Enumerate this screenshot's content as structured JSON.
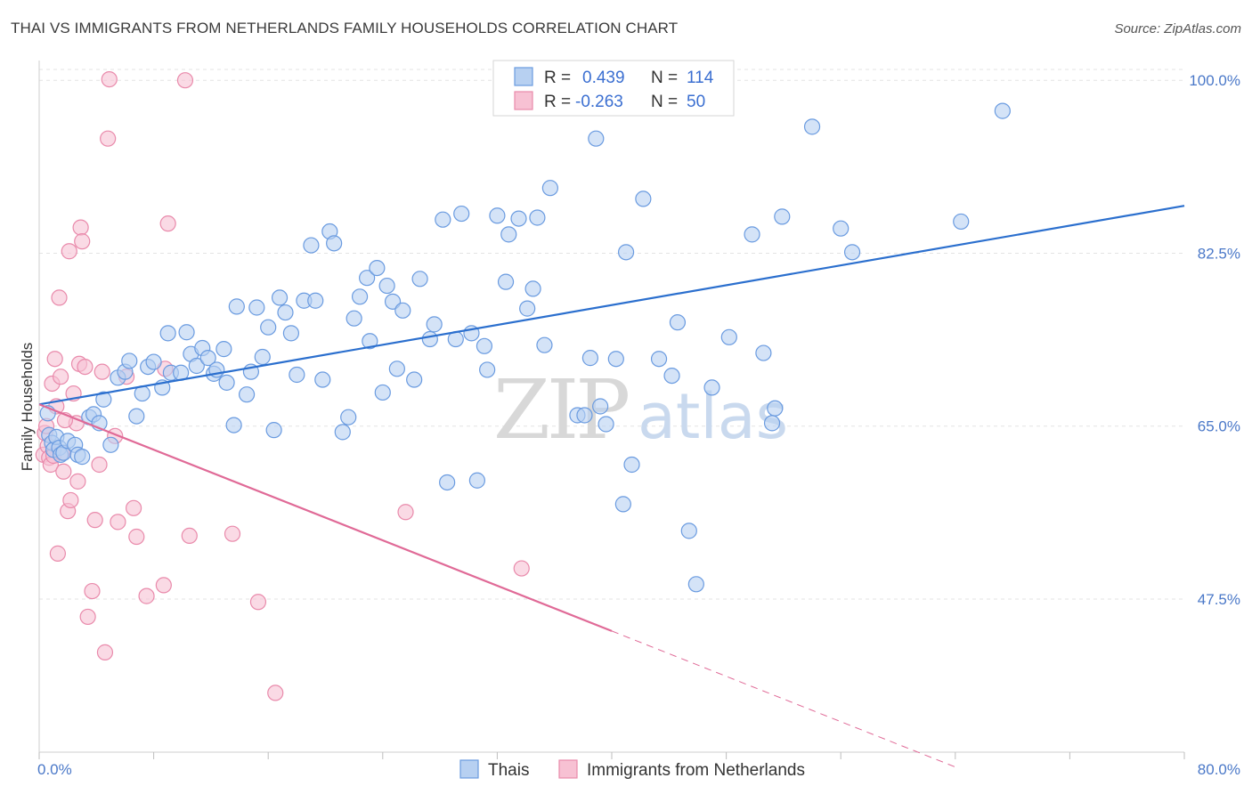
{
  "title": "THAI VS IMMIGRANTS FROM NETHERLANDS FAMILY HOUSEHOLDS CORRELATION CHART",
  "source": "Source: ZipAtlas.com",
  "watermark": {
    "zip": "ZIP",
    "atlas": "atlas"
  },
  "colors": {
    "thai_fill": "#b7d0f1",
    "thai_stroke": "#6a9be0",
    "thai_line": "#2b6fce",
    "neth_fill": "#f7c1d3",
    "neth_stroke": "#e98aab",
    "neth_line": "#e06a97",
    "grid": "#e3e3e3",
    "tick_text": "#4a78c8"
  },
  "legend": {
    "rows": [
      {
        "r_label": "R =",
        "r_value": "0.439",
        "n_label": "N =",
        "n_value": "114"
      },
      {
        "r_label": "R =",
        "r_value": "-0.263",
        "n_label": "N =",
        "n_value": "50"
      }
    ]
  },
  "chart_data": {
    "type": "scatter",
    "ylabel": "Family Households",
    "xlabel": "",
    "xlim": [
      0,
      80
    ],
    "ylim": [
      32,
      102
    ],
    "x_tick_labels": [
      "0.0%",
      "80.0%"
    ],
    "y_ticks": [
      47.5,
      65.0,
      82.5,
      100.0
    ],
    "y_tick_labels": [
      "47.5%",
      "65.0%",
      "82.5%",
      "100.0%"
    ],
    "grid": true,
    "series": [
      {
        "name": "Thais",
        "trend": {
          "x": [
            0,
            80
          ],
          "y": [
            67.2,
            87.3
          ],
          "dashed_from": null
        },
        "points": [
          [
            0.6,
            66.3
          ],
          [
            0.7,
            64.1
          ],
          [
            0.9,
            63.3
          ],
          [
            1.0,
            62.6
          ],
          [
            1.2,
            63.9
          ],
          [
            1.4,
            62.8
          ],
          [
            1.5,
            62.1
          ],
          [
            1.7,
            62.3
          ],
          [
            2.0,
            63.5
          ],
          [
            2.5,
            63.1
          ],
          [
            2.7,
            62.1
          ],
          [
            3.0,
            61.9
          ],
          [
            3.5,
            65.9
          ],
          [
            3.8,
            66.2
          ],
          [
            4.2,
            65.3
          ],
          [
            4.5,
            67.7
          ],
          [
            5.0,
            63.1
          ],
          [
            5.5,
            69.9
          ],
          [
            6.0,
            70.5
          ],
          [
            6.3,
            71.6
          ],
          [
            6.8,
            66.0
          ],
          [
            7.2,
            68.3
          ],
          [
            7.6,
            71.0
          ],
          [
            8.0,
            71.5
          ],
          [
            8.6,
            68.9
          ],
          [
            9.0,
            74.4
          ],
          [
            9.2,
            70.4
          ],
          [
            9.9,
            70.4
          ],
          [
            10.3,
            74.5
          ],
          [
            10.6,
            72.3
          ],
          [
            11.0,
            71.1
          ],
          [
            11.4,
            72.9
          ],
          [
            11.8,
            71.9
          ],
          [
            12.2,
            70.3
          ],
          [
            12.4,
            70.7
          ],
          [
            12.9,
            72.8
          ],
          [
            13.1,
            69.4
          ],
          [
            13.6,
            65.1
          ],
          [
            13.8,
            77.1
          ],
          [
            14.5,
            68.2
          ],
          [
            14.8,
            70.5
          ],
          [
            15.2,
            77.0
          ],
          [
            15.6,
            72.0
          ],
          [
            16.0,
            75.0
          ],
          [
            16.4,
            64.6
          ],
          [
            16.8,
            78.0
          ],
          [
            17.2,
            76.5
          ],
          [
            17.6,
            74.4
          ],
          [
            18.0,
            70.2
          ],
          [
            18.5,
            77.7
          ],
          [
            19.0,
            83.3
          ],
          [
            19.3,
            77.7
          ],
          [
            19.8,
            69.7
          ],
          [
            20.3,
            84.7
          ],
          [
            20.6,
            83.5
          ],
          [
            21.2,
            64.4
          ],
          [
            21.6,
            65.9
          ],
          [
            22.0,
            75.9
          ],
          [
            22.4,
            78.1
          ],
          [
            22.9,
            80.0
          ],
          [
            23.1,
            73.6
          ],
          [
            23.6,
            81.0
          ],
          [
            24.0,
            68.4
          ],
          [
            24.3,
            79.2
          ],
          [
            24.7,
            77.6
          ],
          [
            25.0,
            70.8
          ],
          [
            25.4,
            76.7
          ],
          [
            26.2,
            69.7
          ],
          [
            26.6,
            79.9
          ],
          [
            27.3,
            73.8
          ],
          [
            27.6,
            75.3
          ],
          [
            28.2,
            85.9
          ],
          [
            28.5,
            59.3
          ],
          [
            29.1,
            73.8
          ],
          [
            29.5,
            86.5
          ],
          [
            30.2,
            74.4
          ],
          [
            30.6,
            59.5
          ],
          [
            31.1,
            73.1
          ],
          [
            31.3,
            70.7
          ],
          [
            32.0,
            86.3
          ],
          [
            32.6,
            79.6
          ],
          [
            32.8,
            84.4
          ],
          [
            33.5,
            86.0
          ],
          [
            34.1,
            76.9
          ],
          [
            34.5,
            78.9
          ],
          [
            34.8,
            86.1
          ],
          [
            35.3,
            73.2
          ],
          [
            35.7,
            89.1
          ],
          [
            37.6,
            66.1
          ],
          [
            38.1,
            66.1
          ],
          [
            38.5,
            71.9
          ],
          [
            38.9,
            94.1
          ],
          [
            39.2,
            67.0
          ],
          [
            39.6,
            65.2
          ],
          [
            40.3,
            71.8
          ],
          [
            40.8,
            57.1
          ],
          [
            41.0,
            82.6
          ],
          [
            41.4,
            61.1
          ],
          [
            42.2,
            88.0
          ],
          [
            43.3,
            71.8
          ],
          [
            44.2,
            70.1
          ],
          [
            44.6,
            75.5
          ],
          [
            45.4,
            54.4
          ],
          [
            45.9,
            49.0
          ],
          [
            47.0,
            68.9
          ],
          [
            48.2,
            74.0
          ],
          [
            49.8,
            84.4
          ],
          [
            50.6,
            72.4
          ],
          [
            51.4,
            66.8
          ],
          [
            51.2,
            65.3
          ],
          [
            51.9,
            86.2
          ],
          [
            54.0,
            95.3
          ],
          [
            56.0,
            85.0
          ],
          [
            56.8,
            82.6
          ],
          [
            64.4,
            85.7
          ],
          [
            67.3,
            96.9
          ]
        ]
      },
      {
        "name": "Immigrants from Netherlands",
        "trend": {
          "x": [
            0,
            64
          ],
          "y": [
            67.2,
            30.5
          ],
          "dashed_from": 40
        },
        "points": [
          [
            0.3,
            62.1
          ],
          [
            0.4,
            64.3
          ],
          [
            0.5,
            65.0
          ],
          [
            0.6,
            63.0
          ],
          [
            0.7,
            61.8
          ],
          [
            0.8,
            61.1
          ],
          [
            0.9,
            69.3
          ],
          [
            1.0,
            62.0
          ],
          [
            1.1,
            71.8
          ],
          [
            1.2,
            67.0
          ],
          [
            1.3,
            52.1
          ],
          [
            1.4,
            78.0
          ],
          [
            1.5,
            70.0
          ],
          [
            1.6,
            62.3
          ],
          [
            1.7,
            60.4
          ],
          [
            2.0,
            56.4
          ],
          [
            2.1,
            82.7
          ],
          [
            2.2,
            57.5
          ],
          [
            2.4,
            68.3
          ],
          [
            2.6,
            65.3
          ],
          [
            2.7,
            59.4
          ],
          [
            2.8,
            71.3
          ],
          [
            2.9,
            85.1
          ],
          [
            3.0,
            83.7
          ],
          [
            3.2,
            71.0
          ],
          [
            3.4,
            45.7
          ],
          [
            3.7,
            48.3
          ],
          [
            3.9,
            55.5
          ],
          [
            4.2,
            61.1
          ],
          [
            4.4,
            70.5
          ],
          [
            4.6,
            42.1
          ],
          [
            4.8,
            94.1
          ],
          [
            4.9,
            100.1
          ],
          [
            5.3,
            64.0
          ],
          [
            5.5,
            55.3
          ],
          [
            6.1,
            70.0
          ],
          [
            6.6,
            56.7
          ],
          [
            6.8,
            53.8
          ],
          [
            7.5,
            47.8
          ],
          [
            8.7,
            48.9
          ],
          [
            8.8,
            70.8
          ],
          [
            9.0,
            85.5
          ],
          [
            10.2,
            100.0
          ],
          [
            10.5,
            53.9
          ],
          [
            13.5,
            54.1
          ],
          [
            15.3,
            47.2
          ],
          [
            16.5,
            38.0
          ],
          [
            25.6,
            56.3
          ],
          [
            33.7,
            50.6
          ],
          [
            1.8,
            65.6
          ]
        ]
      }
    ]
  },
  "bottom_legend": [
    "Thais",
    "Immigrants from Netherlands"
  ]
}
